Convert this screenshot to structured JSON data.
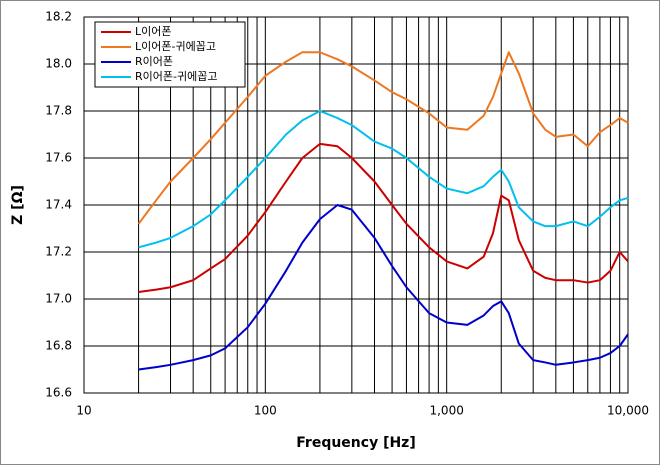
{
  "chart_data": {
    "type": "line",
    "x_label": "Frequency [Hz]",
    "y_label": "Z [Ω]",
    "xscale": "log",
    "grid": true,
    "xlim": [
      10,
      10000
    ],
    "ylim": [
      16.6,
      18.2
    ],
    "xticks": [
      10,
      100,
      {
        "value": 1000,
        "label": "1,000"
      },
      {
        "value": 10000,
        "label": "10,000"
      }
    ],
    "xminorticks": [
      20,
      30,
      40,
      50,
      60,
      70,
      80,
      90,
      200,
      300,
      400,
      500,
      600,
      700,
      800,
      900,
      2000,
      3000,
      4000,
      5000,
      6000,
      7000,
      8000,
      9000
    ],
    "yticks": [
      16.6,
      16.8,
      {
        "value": 17,
        "label": "17.0"
      },
      17.2,
      17.4,
      17.6,
      17.8,
      {
        "value": 18,
        "label": "18.0"
      },
      18.2
    ],
    "legend": "upper left",
    "x": [
      20,
      25,
      30,
      40,
      50,
      60,
      80,
      100,
      130,
      160,
      200,
      250,
      300,
      400,
      500,
      600,
      800,
      1000,
      1300,
      1600,
      1800,
      2000,
      2200,
      2500,
      3000,
      3500,
      4000,
      5000,
      6000,
      7000,
      8000,
      9000,
      10000
    ],
    "series": [
      {
        "name": "L이어폰",
        "color": "#cc0000",
        "values": [
          17.03,
          17.04,
          17.05,
          17.08,
          17.13,
          17.17,
          17.27,
          17.37,
          17.5,
          17.6,
          17.66,
          17.65,
          17.6,
          17.5,
          17.4,
          17.32,
          17.22,
          17.16,
          17.13,
          17.18,
          17.28,
          17.44,
          17.42,
          17.25,
          17.12,
          17.09,
          17.08,
          17.08,
          17.07,
          17.08,
          17.12,
          17.2,
          17.16
        ]
      },
      {
        "name": "L이어폰-귀에꼽고",
        "color": "#ee7722",
        "values": [
          17.32,
          17.42,
          17.5,
          17.6,
          17.68,
          17.75,
          17.86,
          17.95,
          18.01,
          18.05,
          18.05,
          18.02,
          17.99,
          17.93,
          17.88,
          17.85,
          17.79,
          17.73,
          17.72,
          17.78,
          17.86,
          17.96,
          18.05,
          17.96,
          17.79,
          17.72,
          17.69,
          17.7,
          17.65,
          17.71,
          17.74,
          17.77,
          17.75
        ]
      },
      {
        "name": "R이어폰",
        "color": "#0000cc",
        "values": [
          16.7,
          16.71,
          16.72,
          16.74,
          16.76,
          16.79,
          16.88,
          16.98,
          17.12,
          17.24,
          17.34,
          17.4,
          17.38,
          17.26,
          17.14,
          17.05,
          16.94,
          16.9,
          16.89,
          16.93,
          16.97,
          16.99,
          16.94,
          16.81,
          16.74,
          16.73,
          16.72,
          16.73,
          16.74,
          16.75,
          16.77,
          16.8,
          16.85
        ]
      },
      {
        "name": "R이어폰-귀에꼽고",
        "color": "#00c0f0",
        "values": [
          17.22,
          17.24,
          17.26,
          17.31,
          17.36,
          17.42,
          17.52,
          17.6,
          17.7,
          17.76,
          17.8,
          17.77,
          17.74,
          17.67,
          17.64,
          17.6,
          17.52,
          17.47,
          17.45,
          17.48,
          17.52,
          17.55,
          17.5,
          17.39,
          17.33,
          17.31,
          17.31,
          17.33,
          17.31,
          17.35,
          17.39,
          17.42,
          17.43
        ]
      }
    ]
  }
}
